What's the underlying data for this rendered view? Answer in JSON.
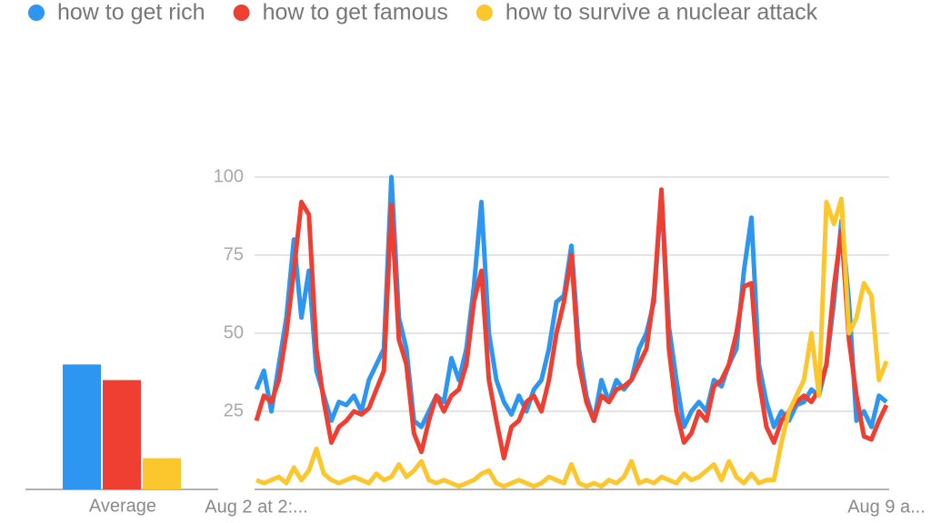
{
  "chart_data": {
    "type": "line",
    "average_label": "Average",
    "categories": [
      "Aug 2 at 2:...",
      null,
      null,
      null,
      null,
      null,
      null,
      null,
      null,
      null,
      null,
      null,
      null,
      null,
      null,
      null,
      null,
      null,
      null,
      null,
      null,
      null,
      null,
      null,
      null,
      null,
      null,
      null,
      null,
      null,
      null,
      null,
      null,
      null,
      null,
      null,
      null,
      null,
      null,
      null,
      null,
      null,
      null,
      null,
      null,
      null,
      null,
      null,
      null,
      null,
      null,
      null,
      null,
      null,
      null,
      null,
      null,
      null,
      null,
      null,
      null,
      null,
      null,
      null,
      null,
      null,
      null,
      null,
      null,
      null,
      null,
      null,
      null,
      null,
      null,
      null,
      null,
      null,
      null,
      null,
      null,
      null,
      null,
      null,
      "Aug 9 a..."
    ],
    "series": [
      {
        "name": "how to get rich",
        "color": "#2d96f0",
        "average": 40,
        "values": [
          32,
          38,
          25,
          40,
          55,
          80,
          55,
          70,
          38,
          30,
          22,
          28,
          27,
          30,
          25,
          35,
          40,
          45,
          100,
          55,
          45,
          22,
          20,
          25,
          30,
          28,
          42,
          35,
          45,
          65,
          92,
          50,
          35,
          28,
          24,
          30,
          25,
          32,
          35,
          45,
          60,
          62,
          78,
          45,
          30,
          22,
          35,
          28,
          35,
          32,
          35,
          45,
          50,
          60,
          95,
          52,
          35,
          20,
          25,
          28,
          25,
          35,
          33,
          40,
          45,
          70,
          87,
          40,
          28,
          20,
          25,
          22,
          27,
          28,
          32,
          30,
          40,
          60,
          86,
          60,
          22,
          25,
          20,
          30,
          28
        ]
      },
      {
        "name": "how to get famous",
        "color": "#ee3f32",
        "average": 35,
        "values": [
          22,
          30,
          28,
          35,
          50,
          70,
          92,
          88,
          45,
          28,
          15,
          20,
          22,
          25,
          24,
          26,
          32,
          38,
          91,
          48,
          40,
          18,
          12,
          22,
          30,
          25,
          30,
          32,
          40,
          60,
          70,
          35,
          22,
          10,
          20,
          22,
          28,
          30,
          25,
          35,
          50,
          60,
          75,
          40,
          28,
          22,
          30,
          28,
          32,
          33,
          35,
          40,
          45,
          62,
          96,
          45,
          25,
          15,
          18,
          25,
          22,
          33,
          35,
          40,
          50,
          65,
          66,
          35,
          20,
          15,
          22,
          25,
          28,
          30,
          28,
          32,
          40,
          65,
          83,
          48,
          30,
          17,
          16,
          22,
          27
        ]
      },
      {
        "name": "how to survive a nuclear attack",
        "color": "#fcc62d",
        "average": 10,
        "values": [
          3,
          2,
          3,
          4,
          2,
          7,
          3,
          6,
          13,
          5,
          3,
          2,
          3,
          4,
          3,
          2,
          5,
          3,
          4,
          8,
          4,
          6,
          9,
          3,
          2,
          3,
          2,
          1,
          2,
          3,
          5,
          6,
          2,
          1,
          2,
          3,
          2,
          1,
          2,
          4,
          3,
          2,
          8,
          2,
          1,
          2,
          1,
          3,
          2,
          4,
          9,
          2,
          3,
          2,
          4,
          3,
          2,
          5,
          3,
          4,
          6,
          8,
          3,
          9,
          4,
          2,
          5,
          2,
          3,
          3,
          15,
          25,
          30,
          35,
          50,
          30,
          92,
          85,
          93,
          50,
          55,
          66,
          62,
          35,
          41
        ]
      }
    ],
    "ylim": [
      0,
      100
    ],
    "yticks": [
      25,
      50,
      75,
      100
    ],
    "grid": true
  }
}
